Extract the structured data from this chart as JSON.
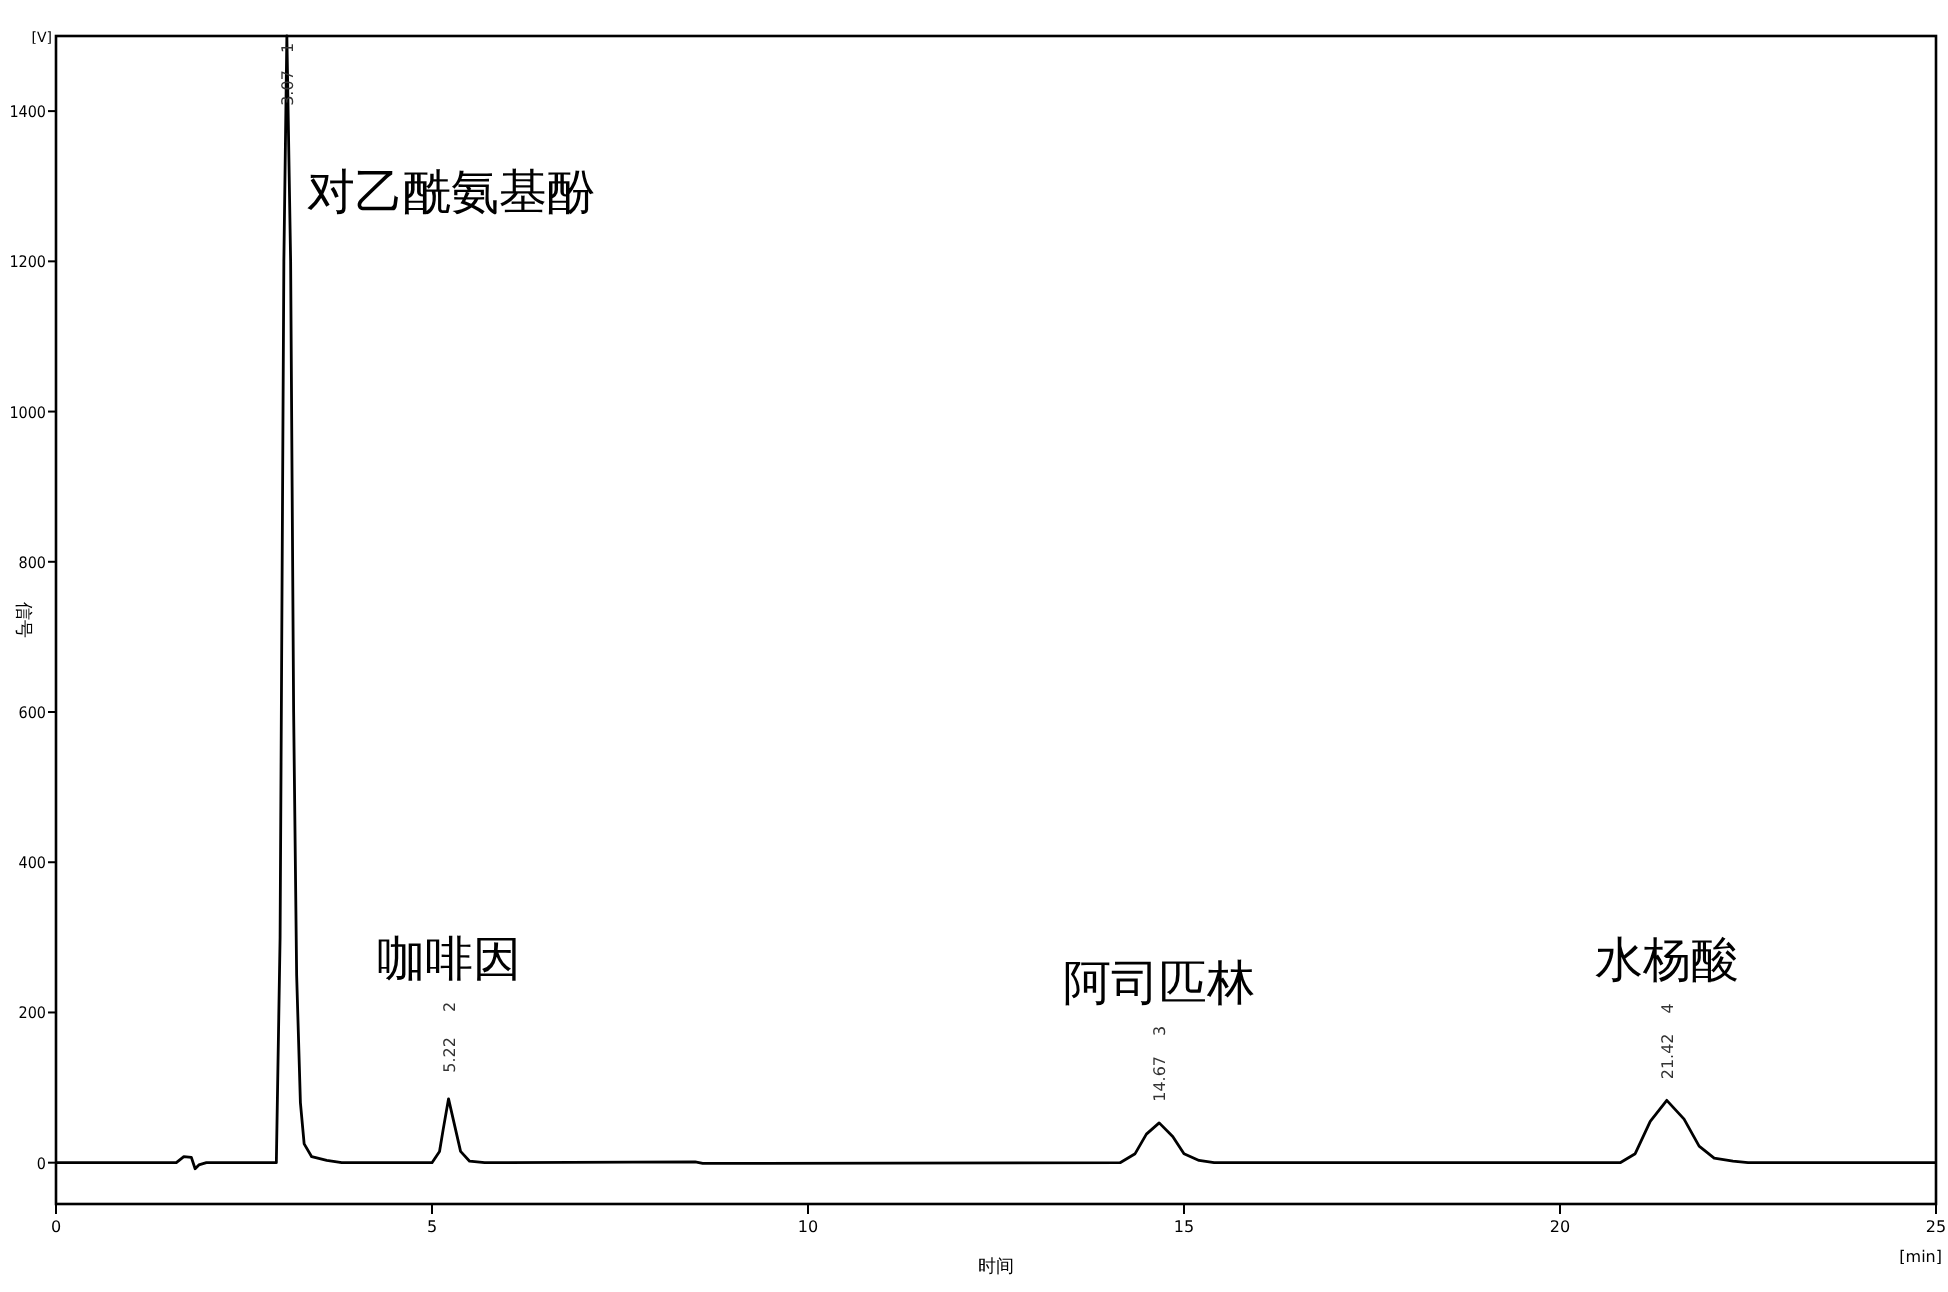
{
  "chart_data": {
    "type": "line",
    "xlabel": "时间",
    "ylabel": "信号",
    "xlim": [
      0,
      25
    ],
    "ylim": [
      -55,
      1500
    ],
    "xticks": [
      0,
      5,
      10,
      15,
      20,
      25
    ],
    "yticks": [
      0,
      200,
      400,
      600,
      800,
      1000,
      1200,
      1400
    ],
    "grid": false,
    "series": [
      {
        "color": "#000000",
        "x": [
          0,
          0.8,
          1.6,
          1.7,
          1.8,
          1.85,
          1.9,
          2.0,
          2.93,
          2.98,
          3.03,
          3.07,
          3.12,
          3.14,
          3.16,
          3.2,
          3.25,
          3.3,
          3.4,
          3.6,
          3.8,
          5.0,
          5.1,
          5.15,
          5.22,
          5.3,
          5.38,
          5.5,
          5.7,
          8.5,
          8.6,
          14.15,
          14.35,
          14.5,
          14.67,
          14.85,
          15.0,
          15.2,
          15.4,
          20.8,
          21.0,
          21.2,
          21.42,
          21.65,
          21.85,
          22.05,
          22.3,
          22.5,
          25
        ],
        "values": [
          0,
          0,
          0,
          8,
          7,
          -8,
          -3,
          0,
          0,
          300,
          1200,
          1500,
          1200,
          900,
          600,
          250,
          80,
          25,
          8,
          3,
          0,
          0,
          15,
          45,
          85,
          50,
          15,
          2,
          0,
          1,
          -1,
          0,
          12,
          38,
          53,
          35,
          12,
          3,
          0,
          0,
          12,
          55,
          83,
          58,
          22,
          6,
          2,
          0,
          0
        ]
      }
    ],
    "annotations": [
      "[V]",
      "[min]",
      {
        "text": "3.07",
        "x": 3.07,
        "y": 1500
      },
      "1",
      "对乙酰氨基酚",
      {
        "text": "5.22",
        "x": 5.22,
        "y": 85
      },
      "2",
      "咖啡因",
      {
        "text": "14.67",
        "x": 14.67,
        "y": 53
      },
      "3",
      "阿司匹林",
      {
        "text": "21.42",
        "x": 21.42,
        "y": 83
      },
      "4",
      "水杨酸"
    ]
  }
}
